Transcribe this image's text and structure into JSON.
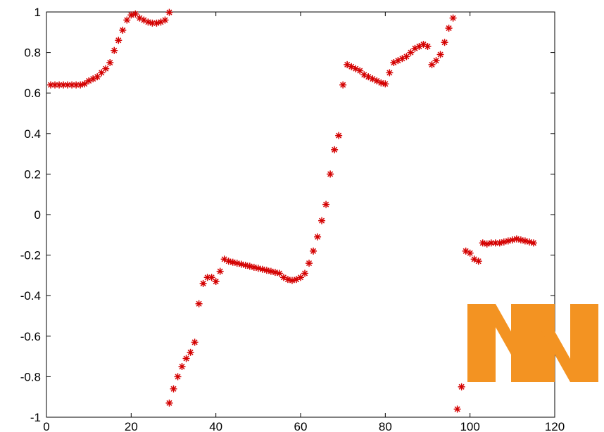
{
  "chart_data": {
    "type": "scatter",
    "title": "",
    "xlabel": "",
    "ylabel": "",
    "xlim": [
      0,
      120
    ],
    "ylim": [
      -1,
      1
    ],
    "xticks": [
      0,
      20,
      40,
      60,
      80,
      100,
      120
    ],
    "yticks": [
      -1,
      -0.8,
      -0.6,
      -0.4,
      -0.2,
      0,
      0.2,
      0.4,
      0.6,
      0.8,
      1
    ],
    "xtick_labels": [
      "0",
      "20",
      "40",
      "60",
      "80",
      "100",
      "120"
    ],
    "ytick_labels": [
      "-1",
      "-0.8",
      "-0.6",
      "-0.4",
      "-0.2",
      "0",
      "0.2",
      "0.4",
      "0.6",
      "0.8",
      "1"
    ],
    "grid": false,
    "marker": "*",
    "marker_color": "#d40000",
    "series": [
      {
        "points": [
          [
            1,
            0.64
          ],
          [
            2,
            0.64
          ],
          [
            3,
            0.64
          ],
          [
            4,
            0.64
          ],
          [
            5,
            0.64
          ],
          [
            6,
            0.64
          ],
          [
            7,
            0.64
          ],
          [
            8,
            0.64
          ],
          [
            9,
            0.645
          ],
          [
            10,
            0.66
          ],
          [
            11,
            0.67
          ],
          [
            12,
            0.68
          ],
          [
            13,
            0.7
          ],
          [
            14,
            0.72
          ],
          [
            15,
            0.75
          ],
          [
            16,
            0.81
          ],
          [
            17,
            0.86
          ],
          [
            18,
            0.91
          ],
          [
            19,
            0.96
          ],
          [
            20,
            0.985
          ],
          [
            21,
            0.99
          ],
          [
            22,
            0.97
          ],
          [
            23,
            0.96
          ],
          [
            24,
            0.95
          ],
          [
            25,
            0.945
          ],
          [
            26,
            0.945
          ],
          [
            27,
            0.95
          ],
          [
            28,
            0.96
          ],
          [
            29,
            0.998
          ],
          [
            29,
            -0.93
          ],
          [
            30,
            -0.86
          ],
          [
            31,
            -0.8
          ],
          [
            32,
            -0.75
          ],
          [
            33,
            -0.71
          ],
          [
            34,
            -0.68
          ],
          [
            35,
            -0.63
          ],
          [
            36,
            -0.44
          ],
          [
            37,
            -0.34
          ],
          [
            38,
            -0.31
          ],
          [
            39,
            -0.31
          ],
          [
            40,
            -0.33
          ],
          [
            41,
            -0.28
          ],
          [
            42,
            -0.22
          ],
          [
            43,
            -0.23
          ],
          [
            44,
            -0.235
          ],
          [
            45,
            -0.24
          ],
          [
            46,
            -0.245
          ],
          [
            47,
            -0.25
          ],
          [
            48,
            -0.255
          ],
          [
            49,
            -0.26
          ],
          [
            50,
            -0.265
          ],
          [
            51,
            -0.27
          ],
          [
            52,
            -0.275
          ],
          [
            53,
            -0.28
          ],
          [
            54,
            -0.285
          ],
          [
            55,
            -0.29
          ],
          [
            56,
            -0.31
          ],
          [
            57,
            -0.32
          ],
          [
            58,
            -0.325
          ],
          [
            59,
            -0.32
          ],
          [
            60,
            -0.31
          ],
          [
            61,
            -0.29
          ],
          [
            62,
            -0.24
          ],
          [
            63,
            -0.18
          ],
          [
            64,
            -0.11
          ],
          [
            65,
            -0.03
          ],
          [
            66,
            0.05
          ],
          [
            67,
            0.2
          ],
          [
            68,
            0.32
          ],
          [
            69,
            0.39
          ],
          [
            70,
            0.64
          ],
          [
            71,
            0.74
          ],
          [
            72,
            0.73
          ],
          [
            73,
            0.72
          ],
          [
            74,
            0.71
          ],
          [
            75,
            0.69
          ],
          [
            76,
            0.68
          ],
          [
            77,
            0.67
          ],
          [
            78,
            0.66
          ],
          [
            79,
            0.65
          ],
          [
            80,
            0.645
          ],
          [
            81,
            0.7
          ],
          [
            82,
            0.75
          ],
          [
            83,
            0.76
          ],
          [
            84,
            0.77
          ],
          [
            85,
            0.78
          ],
          [
            86,
            0.8
          ],
          [
            87,
            0.82
          ],
          [
            88,
            0.83
          ],
          [
            89,
            0.84
          ],
          [
            90,
            0.83
          ],
          [
            91,
            0.74
          ],
          [
            92,
            0.76
          ],
          [
            93,
            0.79
          ],
          [
            94,
            0.85
          ],
          [
            95,
            0.92
          ],
          [
            96,
            0.97
          ],
          [
            97,
            -0.96
          ],
          [
            98,
            -0.85
          ],
          [
            99,
            -0.18
          ],
          [
            100,
            -0.19
          ],
          [
            101,
            -0.22
          ],
          [
            102,
            -0.23
          ],
          [
            103,
            -0.14
          ],
          [
            104,
            -0.145
          ],
          [
            105,
            -0.14
          ],
          [
            106,
            -0.14
          ],
          [
            107,
            -0.14
          ],
          [
            108,
            -0.135
          ],
          [
            109,
            -0.13
          ],
          [
            110,
            -0.125
          ],
          [
            111,
            -0.12
          ],
          [
            112,
            -0.125
          ],
          [
            113,
            -0.13
          ],
          [
            114,
            -0.135
          ],
          [
            115,
            -0.14
          ]
        ]
      }
    ]
  },
  "overlay": {
    "logo_text": "NN",
    "logo_color": "#f39322"
  }
}
